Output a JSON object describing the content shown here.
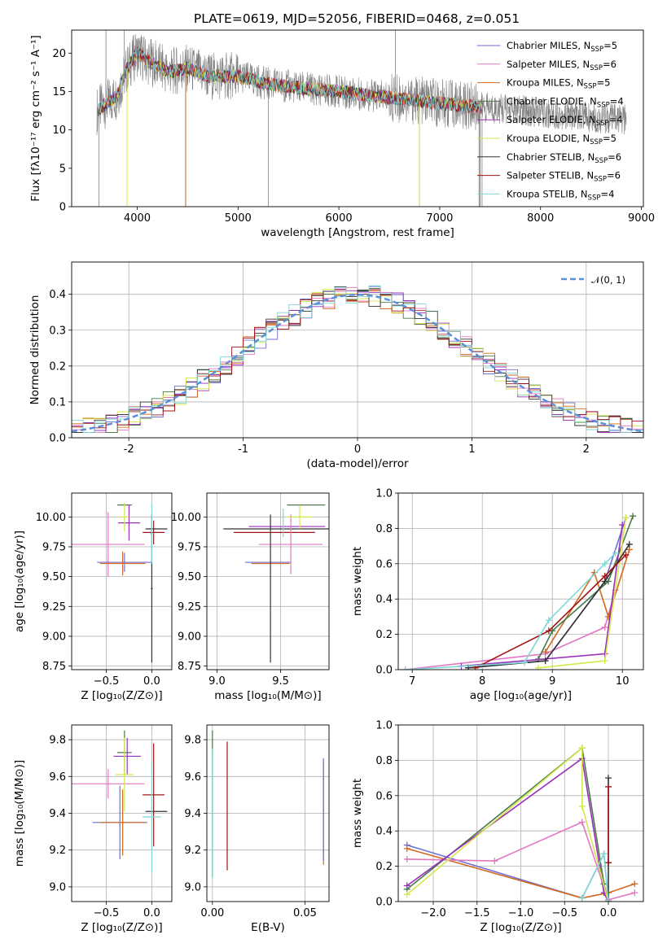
{
  "chart_data": [
    {
      "id": "spectrum",
      "type": "line",
      "title": "PLATE=0619, MJD=52056, FIBERID=0468, z=0.051",
      "xlabel": "wavelength [Angstrom, rest frame]",
      "ylabel": "Flux [fλ10⁻¹⁷ erg cm⁻² s⁻¹ A⁻¹]",
      "xlim": [
        3350,
        9020
      ],
      "ylim": [
        0,
        23
      ],
      "xticks": [
        4000,
        5000,
        6000,
        7000,
        8000,
        9000
      ],
      "yticks": [
        0,
        5,
        10,
        15,
        20
      ],
      "grid": false,
      "legend_position": "top-right",
      "continuum_x": [
        3600,
        3700,
        3800,
        3900,
        4000,
        4100,
        4200,
        4300,
        4500,
        4700,
        5000,
        5300,
        5600,
        6000,
        6300,
        6500,
        6800,
        7000,
        7200,
        7400
      ],
      "continuum_y": [
        12.5,
        13.5,
        14.5,
        18.0,
        20.0,
        19.0,
        18.5,
        17.5,
        18.0,
        17.0,
        17.0,
        16.0,
        15.5,
        15.0,
        14.5,
        14.2,
        13.8,
        13.5,
        13.2,
        13.0
      ],
      "spikes": [
        [
          3620,
          0
        ],
        [
          3690,
          23
        ],
        [
          3870,
          23
        ],
        [
          4480,
          0
        ],
        [
          5300,
          0
        ],
        [
          6560,
          23
        ],
        [
          6800,
          0
        ],
        [
          7390,
          0
        ],
        [
          7420,
          0
        ]
      ],
      "series": [
        {
          "name": "Chabrier MILES, N",
          "sub": "SSP",
          "eq": "=5",
          "color": "#6f6fd6"
        },
        {
          "name": "Salpeter MILES, N",
          "sub": "SSP",
          "eq": "=6",
          "color": "#e377c2"
        },
        {
          "name": "Kroupa MILES, N",
          "sub": "SSP",
          "eq": "=5",
          "color": "#d2691e"
        },
        {
          "name": "Chabrier ELODIE, N",
          "sub": "SSP",
          "eq": "=4",
          "color": "#4a7a4a"
        },
        {
          "name": "Salpeter ELODIE, N",
          "sub": "SSP",
          "eq": "=4",
          "color": "#9b30b8"
        },
        {
          "name": "Kroupa ELODIE, N",
          "sub": "SSP",
          "eq": "=5",
          "color": "#d6e84a"
        },
        {
          "name": "Chabrier STELIB, N",
          "sub": "SSP",
          "eq": "=6",
          "color": "#333333"
        },
        {
          "name": "Salpeter STELIB, N",
          "sub": "SSP",
          "eq": "=6",
          "color": "#a31515"
        },
        {
          "name": "Kroupa STELIB, N",
          "sub": "SSP",
          "eq": "=4",
          "color": "#7fd6d6"
        }
      ]
    },
    {
      "id": "residuals",
      "type": "line",
      "xlabel": "(data-model)/error",
      "ylabel": "Normed distribution",
      "xlim": [
        -2.5,
        2.5
      ],
      "ylim": [
        0,
        0.49
      ],
      "xticks": [
        -2,
        -1,
        0,
        1,
        2
      ],
      "yticks": [
        0.0,
        0.1,
        0.2,
        0.3,
        0.4
      ],
      "grid": true,
      "legend_position": "top-right",
      "legend": "𝒩(0, 1)",
      "gaussian_color": "#5b8fd9",
      "hist_colors": [
        "#6f6fd6",
        "#e377c2",
        "#d2691e",
        "#4a7a4a",
        "#9b30b8",
        "#d6e84a",
        "#333333",
        "#a31515",
        "#7fd6d6"
      ]
    },
    {
      "id": "age-vs-Z",
      "type": "scatter",
      "xlabel": "Z [log₁₀(Z/Z⊙)]",
      "ylabel": "age  [log₁₀(age/yr)]",
      "xlim": [
        -0.88,
        0.22
      ],
      "ylim": [
        8.72,
        10.2
      ],
      "xticks": [
        -0.5,
        0.0
      ],
      "xticklabels": [
        "−0.5",
        "0.0"
      ],
      "yticks": [
        8.75,
        9.0,
        9.25,
        9.5,
        9.75,
        10.0
      ],
      "yticklabels": [
        "8.75",
        "9.00",
        "9.25",
        "9.50",
        "9.75",
        "10.00"
      ],
      "grid": true,
      "points": [
        {
          "x": -0.3,
          "y": 10.1,
          "xe": 0.08,
          "ye": 0.0,
          "c": "#4a7a4a"
        },
        {
          "x": -0.25,
          "y": 9.95,
          "xe": 0.12,
          "ye": 0.15,
          "c": "#9b30b8"
        },
        {
          "x": -0.48,
          "y": 9.77,
          "xe": 0.4,
          "ye": 0.27,
          "c": "#e377c2"
        },
        {
          "x": -0.3,
          "y": 9.62,
          "xe": 0.3,
          "ye": 0.08,
          "c": "#6f6fd6"
        },
        {
          "x": -0.32,
          "y": 9.61,
          "xe": 0.25,
          "ye": 0.1,
          "c": "#d2691e"
        },
        {
          "x": -0.3,
          "y": 10.0,
          "xe": 0.05,
          "ye": 0.12,
          "c": "#d6e84a"
        },
        {
          "x": 0.02,
          "y": 9.87,
          "xe": 0.12,
          "ye": 0.1,
          "c": "#a31515"
        },
        {
          "x": 0.05,
          "y": 9.9,
          "xe": 0.12,
          "ye": 0.0,
          "c": "#333333"
        },
        {
          "x": 0.0,
          "y": 9.4,
          "xe": 0.01,
          "ye": 0.62,
          "c": "#333333"
        },
        {
          "x": 0.0,
          "y": 9.86,
          "xe": 0.02,
          "ye": 0.25,
          "c": "#7fd6d6"
        }
      ]
    },
    {
      "id": "age-vs-mass",
      "type": "scatter",
      "xlabel": "mass [log₁₀(M/M⊙)]",
      "xlim": [
        8.92,
        9.88
      ],
      "ylim": [
        8.72,
        10.2
      ],
      "xticks": [
        9.0,
        9.5
      ],
      "xticklabels": [
        "9.0",
        "9.5"
      ],
      "yticks": [
        8.75,
        9.0,
        9.25,
        9.5,
        9.75,
        10.0
      ],
      "yticklabels": [
        "8.75",
        "9.00",
        "9.25",
        "9.50",
        "9.75",
        "10.00"
      ],
      "grid": true,
      "points": [
        {
          "x": 9.7,
          "y": 10.1,
          "xe": 0.15,
          "ye": 0.0,
          "c": "#4a7a4a"
        },
        {
          "x": 9.55,
          "y": 9.92,
          "xe": 0.3,
          "ye": 0.0,
          "c": "#9b30b8"
        },
        {
          "x": 9.5,
          "y": 9.9,
          "xe": 0.45,
          "ye": 0.0,
          "c": "#333333"
        },
        {
          "x": 9.45,
          "y": 9.87,
          "xe": 0.32,
          "ye": 0.0,
          "c": "#a31515"
        },
        {
          "x": 9.58,
          "y": 9.77,
          "xe": 0.25,
          "ye": 0.25,
          "c": "#e377c2"
        },
        {
          "x": 9.4,
          "y": 9.62,
          "xe": 0.18,
          "ye": 0.0,
          "c": "#6f6fd6"
        },
        {
          "x": 9.42,
          "y": 9.61,
          "xe": 0.15,
          "ye": 0.0,
          "c": "#d2691e"
        },
        {
          "x": 9.65,
          "y": 10.0,
          "xe": 0.1,
          "ye": 0.1,
          "c": "#d6e84a"
        },
        {
          "x": 9.42,
          "y": 9.4,
          "xe": 0.0,
          "ye": 0.62,
          "c": "#333333"
        },
        {
          "x": 9.52,
          "y": 9.95,
          "xe": 0.0,
          "ye": 0.12,
          "c": "#7fd6d6"
        }
      ]
    },
    {
      "id": "weight-vs-age",
      "type": "line",
      "xlabel": "age  [log₁₀(age/yr)]",
      "ylabel": "mass weight",
      "xlim": [
        6.8,
        10.3
      ],
      "ylim": [
        0.0,
        1.0
      ],
      "xticks": [
        7,
        8,
        9,
        10
      ],
      "yticks": [
        0.0,
        0.2,
        0.4,
        0.6,
        0.8,
        1.0
      ],
      "grid": true,
      "lines": [
        {
          "c": "#6f6fd6",
          "x": [
            7.8,
            8.9,
            9.75,
            10.05
          ],
          "y": [
            0.01,
            0.05,
            0.5,
            0.86
          ]
        },
        {
          "c": "#e377c2",
          "x": [
            6.9,
            8.9,
            9.75,
            9.9
          ],
          "y": [
            0.0,
            0.09,
            0.24,
            0.45
          ]
        },
        {
          "c": "#d2691e",
          "x": [
            8.9,
            9.6,
            9.8,
            10.1
          ],
          "y": [
            0.1,
            0.55,
            0.3,
            0.68
          ]
        },
        {
          "c": "#4a7a4a",
          "x": [
            8.8,
            9.0,
            9.8,
            10.15
          ],
          "y": [
            0.06,
            0.22,
            0.5,
            0.87
          ]
        },
        {
          "c": "#9b30b8",
          "x": [
            7.7,
            9.75,
            10.0
          ],
          "y": [
            0.02,
            0.09,
            0.82
          ]
        },
        {
          "c": "#d6e84a",
          "x": [
            8.8,
            9.75,
            10.05
          ],
          "y": [
            0.01,
            0.05,
            0.86
          ]
        },
        {
          "c": "#333333",
          "x": [
            7.8,
            8.9,
            9.75,
            10.1
          ],
          "y": [
            0.01,
            0.05,
            0.5,
            0.71
          ]
        },
        {
          "c": "#a31515",
          "x": [
            7.9,
            8.95,
            9.75,
            10.05
          ],
          "y": [
            0.01,
            0.22,
            0.53,
            0.65
          ]
        },
        {
          "c": "#7fd6d6",
          "x": [
            6.9,
            8.6,
            8.95,
            9.75,
            9.9
          ],
          "y": [
            0.0,
            0.04,
            0.28,
            0.6,
            0.66
          ]
        }
      ]
    },
    {
      "id": "mass-vs-Z",
      "type": "scatter",
      "xlabel": "Z [log₁₀(Z/Z⊙)]",
      "ylabel": "mass [log₁₀(M/M⊙)]",
      "xlim": [
        -0.88,
        0.22
      ],
      "ylim": [
        8.92,
        9.88
      ],
      "xticks": [
        -0.5,
        0.0
      ],
      "xticklabels": [
        "−0.5",
        "0.0"
      ],
      "yticks": [
        9.0,
        9.2,
        9.4,
        9.6,
        9.8
      ],
      "yticklabels": [
        "9.0",
        "9.2",
        "9.4",
        "9.6",
        "9.8"
      ],
      "grid": true,
      "points": [
        {
          "x": -0.3,
          "y": 9.73,
          "xe": 0.08,
          "ye": 0.12,
          "c": "#4a7a4a"
        },
        {
          "x": -0.27,
          "y": 9.71,
          "xe": 0.15,
          "ye": 0.1,
          "c": "#9b30b8"
        },
        {
          "x": -0.48,
          "y": 9.56,
          "xe": 0.4,
          "ye": 0.08,
          "c": "#e377c2"
        },
        {
          "x": -0.3,
          "y": 9.61,
          "xe": 0.1,
          "ye": 0.2,
          "c": "#d6e84a"
        },
        {
          "x": -0.35,
          "y": 9.35,
          "xe": 0.3,
          "ye": 0.2,
          "c": "#6f6fd6"
        },
        {
          "x": -0.32,
          "y": 9.35,
          "xe": 0.25,
          "ye": 0.18,
          "c": "#d2691e"
        },
        {
          "x": 0.02,
          "y": 9.5,
          "xe": 0.12,
          "ye": 0.28,
          "c": "#a31515"
        },
        {
          "x": 0.05,
          "y": 9.41,
          "xe": 0.12,
          "ye": 0.0,
          "c": "#333333"
        },
        {
          "x": 0.0,
          "y": 9.38,
          "xe": 0.1,
          "ye": 0.3,
          "c": "#7fd6d6"
        }
      ]
    },
    {
      "id": "mass-vs-ebv",
      "type": "scatter",
      "xlabel": "E(B-V)",
      "xlim": [
        -0.003,
        0.063
      ],
      "ylim": [
        8.92,
        9.88
      ],
      "xticks": [
        0.0,
        0.05
      ],
      "xticklabels": [
        "0.00",
        "0.05"
      ],
      "yticks": [
        9.0,
        9.2,
        9.4,
        9.6,
        9.8
      ],
      "yticklabels": [
        "9.0",
        "9.2",
        "9.4",
        "9.6",
        "9.8"
      ],
      "grid": true,
      "points": [
        {
          "x": 0.0,
          "y": 9.45,
          "xe": 0.0,
          "ye": 0.4,
          "c": "#4a7a4a"
        },
        {
          "x": 0.0,
          "y": 9.4,
          "xe": 0.0,
          "ye": 0.35,
          "c": "#7fd6d6"
        },
        {
          "x": 0.008,
          "y": 9.44,
          "xe": 0.0,
          "ye": 0.35,
          "c": "#a31515"
        },
        {
          "x": 0.06,
          "y": 9.4,
          "xe": 0.0,
          "ye": 0.28,
          "c": "#d2691e"
        },
        {
          "x": 0.06,
          "y": 9.42,
          "xe": 0.0,
          "ye": 0.28,
          "c": "#6f6fd6"
        }
      ]
    },
    {
      "id": "weight-vs-Z",
      "type": "line",
      "xlabel": "Z [log₁₀(Z/Z⊙)]",
      "ylabel": "mass weight",
      "xlim": [
        -2.4,
        0.4
      ],
      "ylim": [
        0.0,
        1.0
      ],
      "xticks": [
        -2.0,
        -1.5,
        -1.0,
        -0.5,
        0.0
      ],
      "xticklabels": [
        "−2.0",
        "−1.5",
        "−1.0",
        "−0.5",
        "0.0"
      ],
      "yticks": [
        0.0,
        0.2,
        0.4,
        0.6,
        0.8,
        1.0
      ],
      "grid": true,
      "lines": [
        {
          "c": "#6f6fd6",
          "x": [
            -2.3,
            -0.3,
            -0.05,
            0.0
          ],
          "y": [
            0.32,
            0.02,
            0.27,
            0.0
          ]
        },
        {
          "c": "#d2691e",
          "x": [
            -2.3,
            -0.3,
            0.0,
            0.3
          ],
          "y": [
            0.3,
            0.02,
            0.05,
            0.1
          ]
        },
        {
          "c": "#e377c2",
          "x": [
            -2.3,
            -1.3,
            -0.3,
            0.0,
            0.3
          ],
          "y": [
            0.24,
            0.23,
            0.45,
            0.01,
            0.05
          ]
        },
        {
          "c": "#4a7a4a",
          "x": [
            -2.3,
            -0.3,
            -0.05,
            0.0
          ],
          "y": [
            0.07,
            0.87,
            0.1,
            0.0
          ]
        },
        {
          "c": "#9b30b8",
          "x": [
            -2.3,
            -0.3,
            -0.05,
            0.0
          ],
          "y": [
            0.09,
            0.81,
            0.05,
            0.0
          ]
        },
        {
          "c": "#d6e84a",
          "x": [
            -2.3,
            -0.3,
            -0.3,
            0.0
          ],
          "y": [
            0.04,
            0.87,
            0.54,
            0.0
          ]
        },
        {
          "c": "#333333",
          "x": [
            0.0,
            0.0,
            0.0
          ],
          "y": [
            0.7,
            0.22,
            0.0
          ]
        },
        {
          "c": "#a31515",
          "x": [
            0.0,
            0.0
          ],
          "y": [
            0.65,
            0.22
          ]
        },
        {
          "c": "#7fd6d6",
          "x": [
            -0.3,
            -0.05,
            0.0
          ],
          "y": [
            0.02,
            0.27,
            0.0
          ]
        }
      ]
    }
  ]
}
